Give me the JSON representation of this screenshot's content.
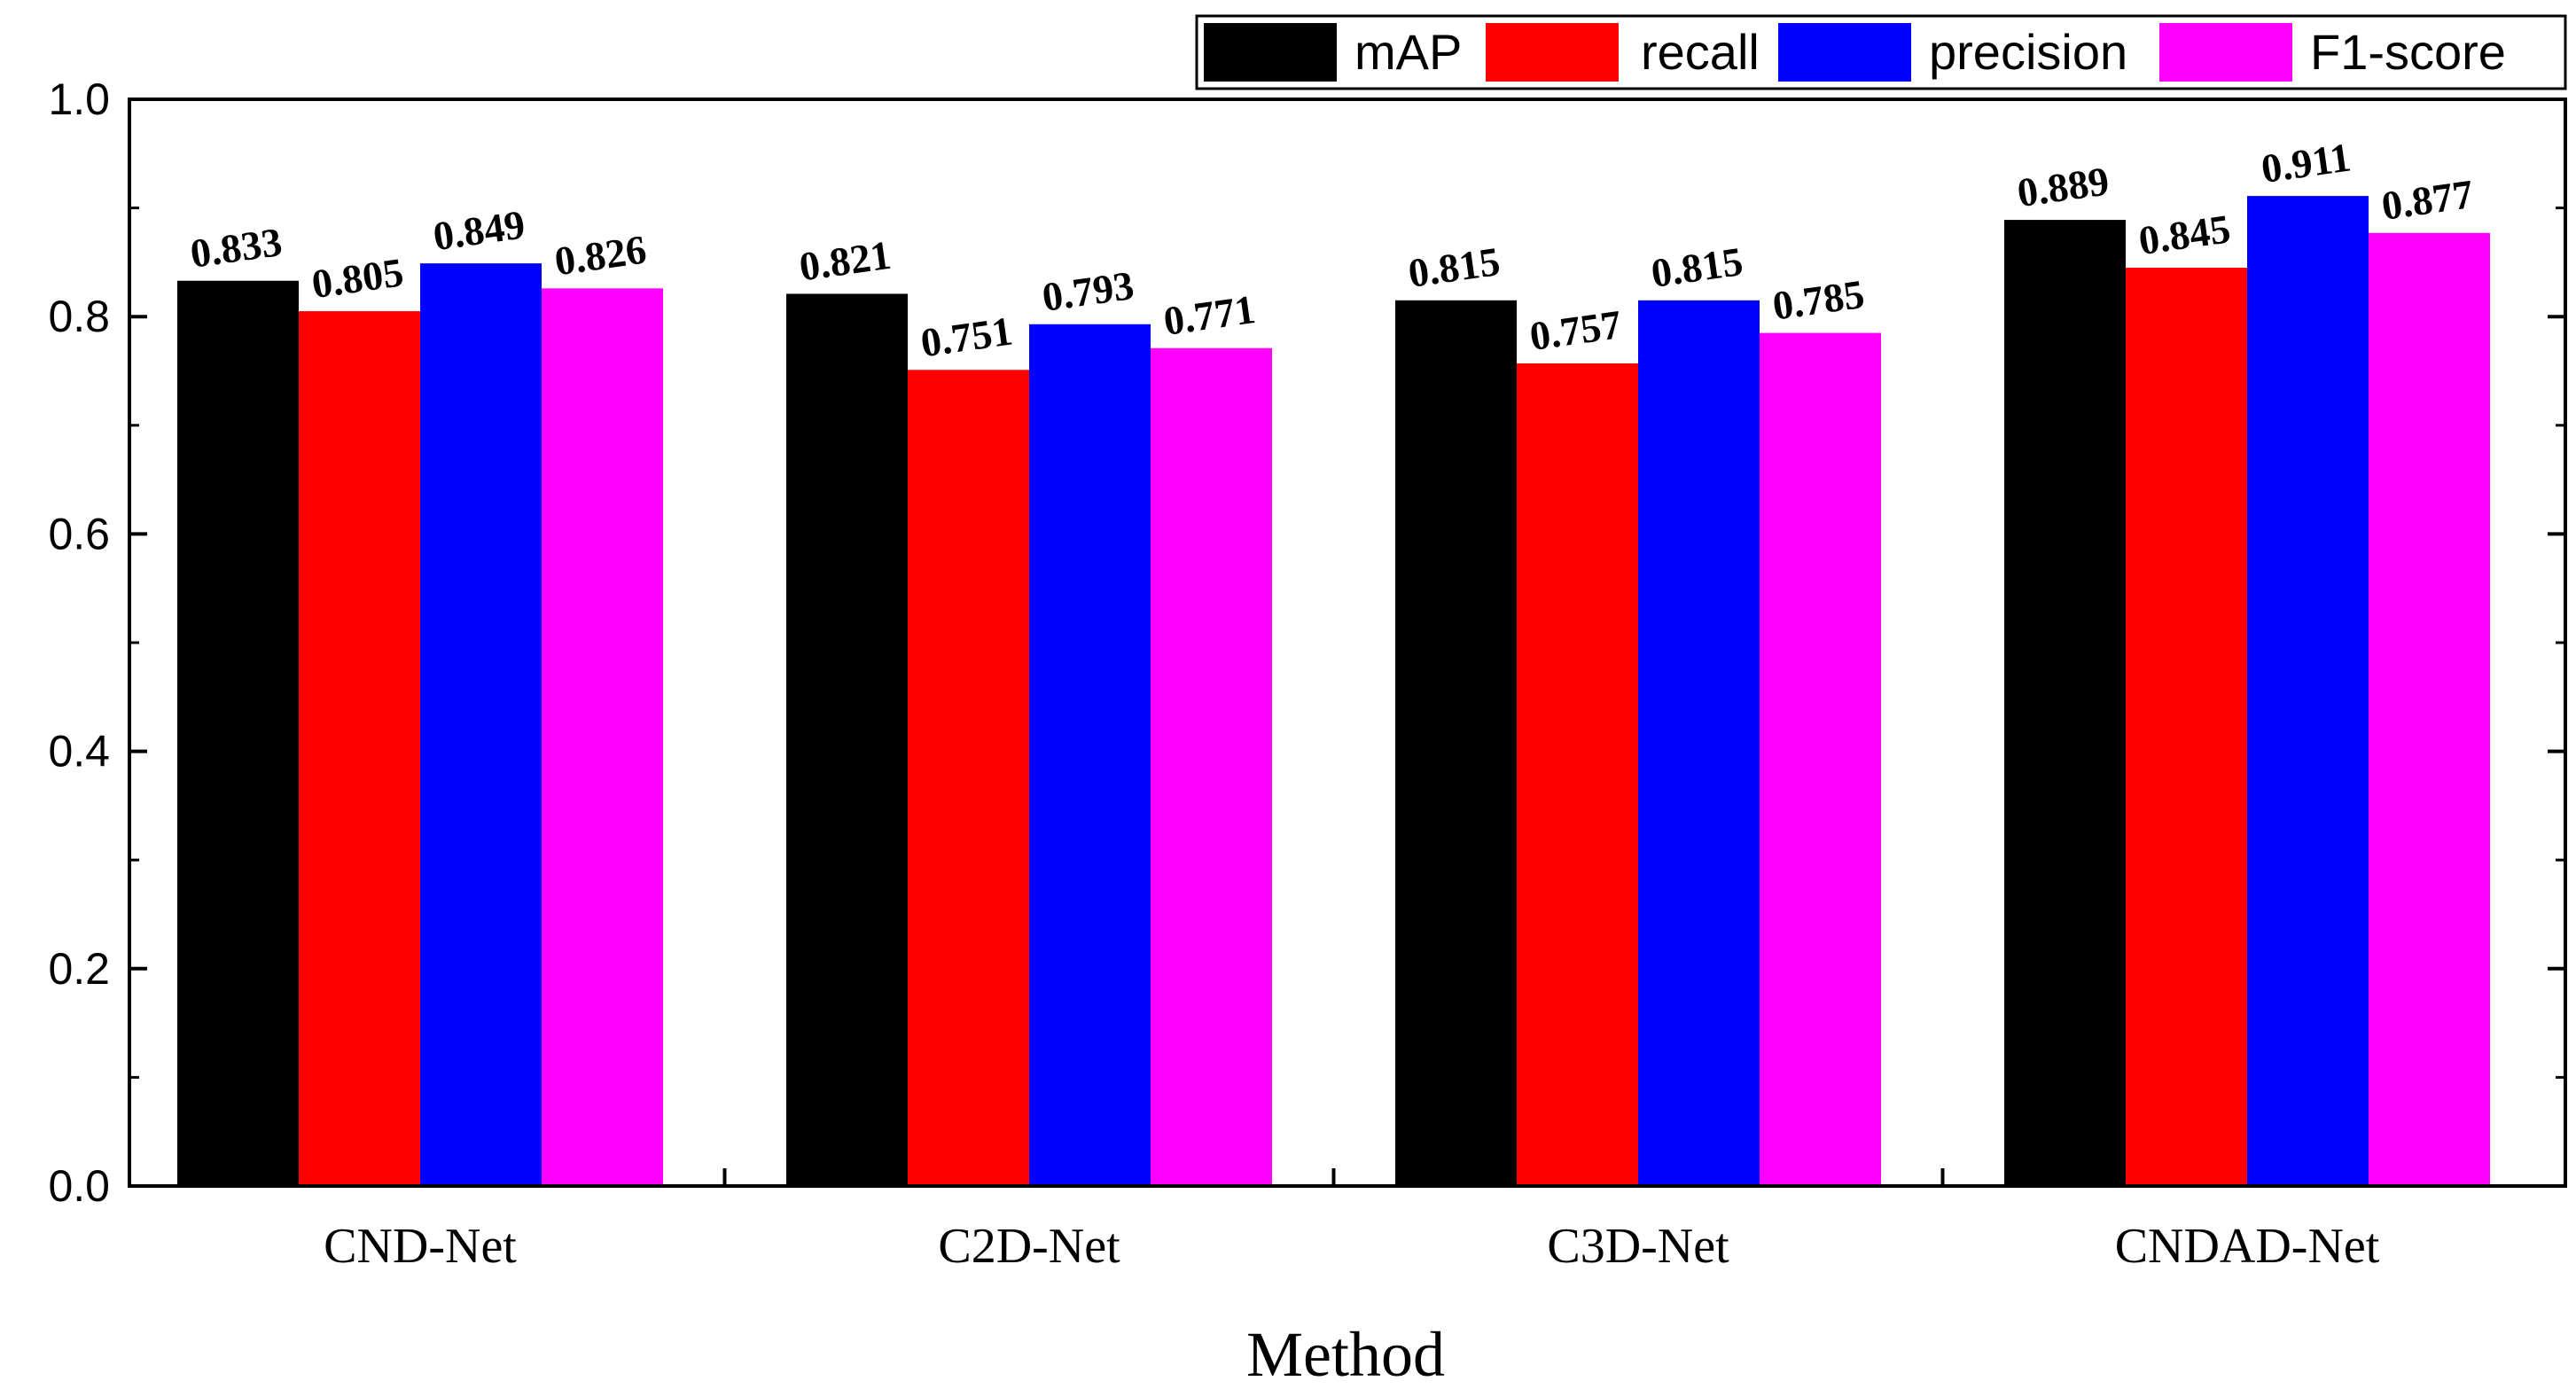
{
  "chart_data": {
    "type": "bar",
    "title": "",
    "xlabel": "Method",
    "ylabel": "",
    "ylim": [
      0,
      1.0
    ],
    "yticks": [
      "0.0",
      "0.2",
      "0.4",
      "0.6",
      "0.8",
      "1.0"
    ],
    "categories": [
      "CND-Net",
      "C2D-Net",
      "C3D-Net",
      "CNDAD-Net"
    ],
    "series": [
      {
        "name": "mAP",
        "color": "#000000",
        "values": [
          0.833,
          0.821,
          0.815,
          0.889
        ],
        "labels": [
          "0.833",
          "0.821",
          "0.815",
          "0.889"
        ]
      },
      {
        "name": "recall",
        "color": "#ff0000",
        "values": [
          0.805,
          0.751,
          0.757,
          0.845
        ],
        "labels": [
          "0.805",
          "0.751",
          "0.757",
          "0.845"
        ]
      },
      {
        "name": "precision",
        "color": "#0000ff",
        "values": [
          0.849,
          0.793,
          0.815,
          0.911
        ],
        "labels": [
          "0.849",
          "0.793",
          "0.815",
          "0.911"
        ]
      },
      {
        "name": "F1-score",
        "color": "#ff00ff",
        "values": [
          0.826,
          0.771,
          0.785,
          0.877
        ],
        "labels": [
          "0.826",
          "0.771",
          "0.785",
          "0.877"
        ]
      }
    ],
    "legend": "top-right",
    "grid": false
  }
}
